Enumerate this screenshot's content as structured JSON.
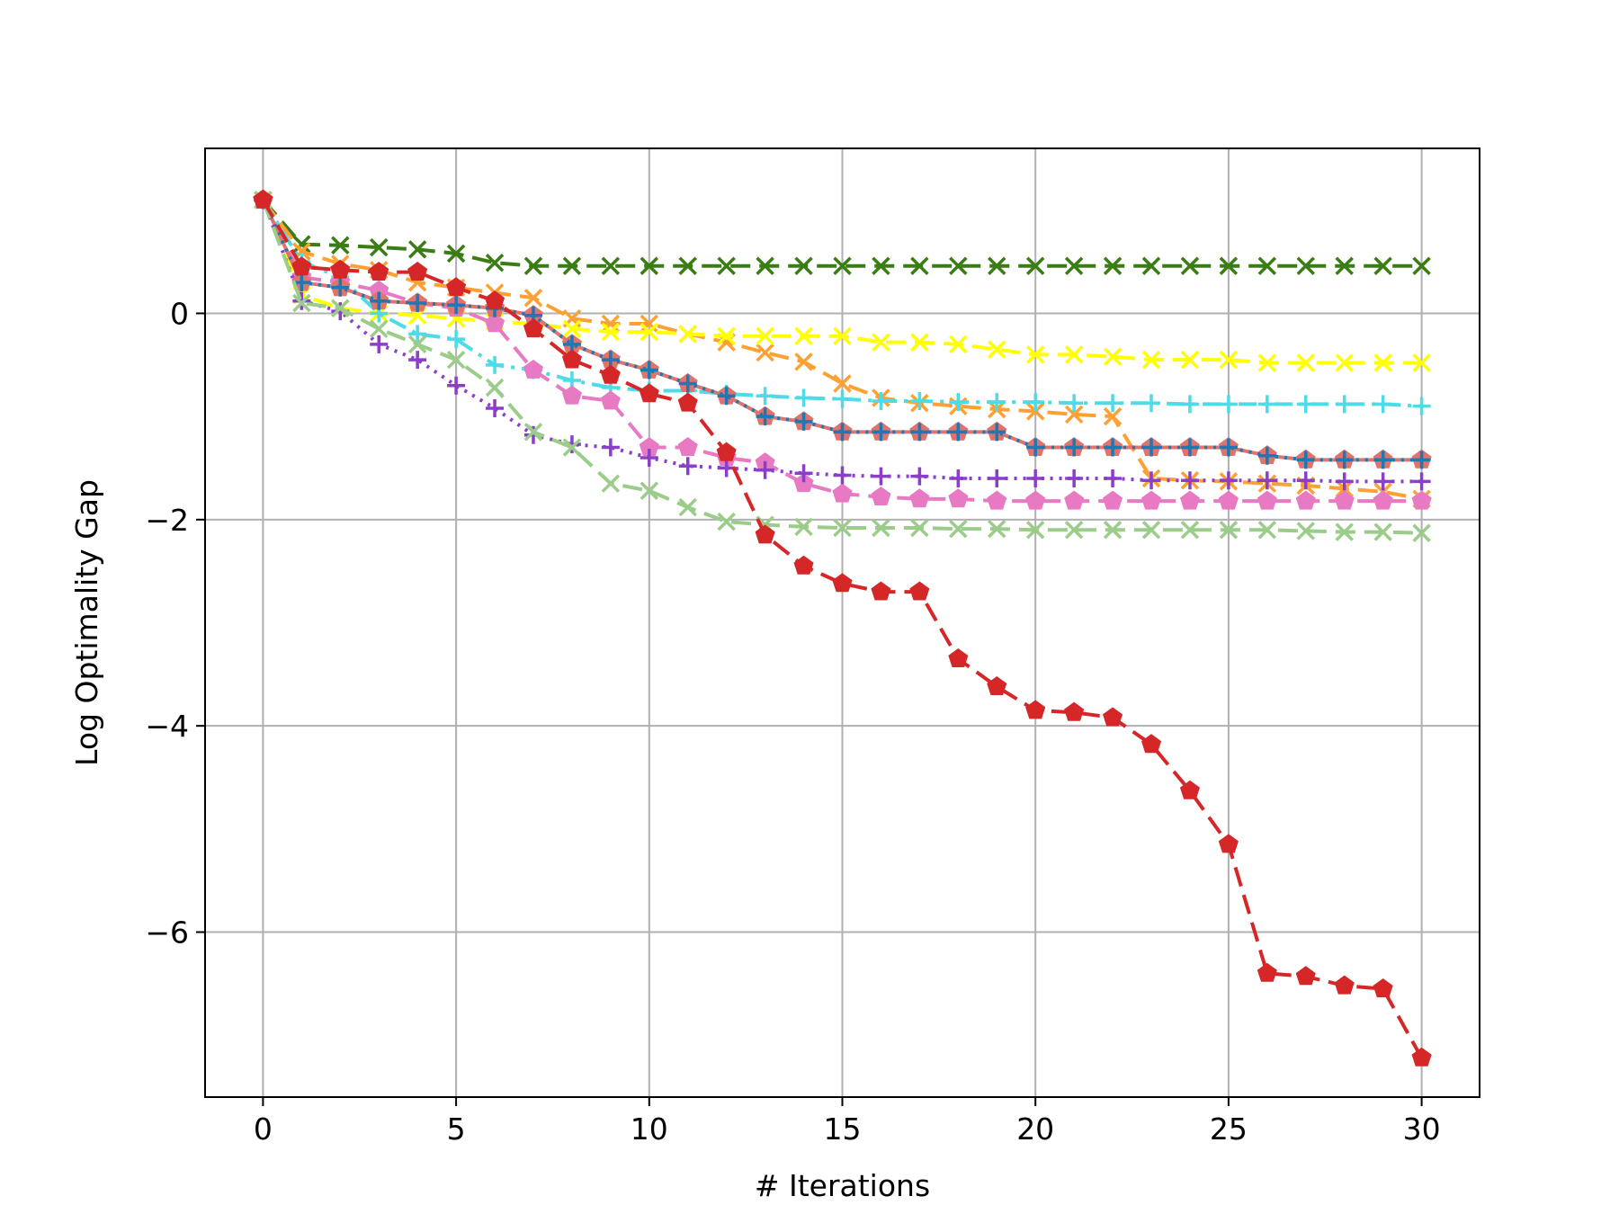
{
  "chart_data": {
    "type": "line",
    "title": "",
    "xlabel": "# Iterations",
    "ylabel": "Log Optimality Gap",
    "xlim": [
      -1.5,
      31.5
    ],
    "ylim": [
      -7.6,
      1.6
    ],
    "xticks": [
      0,
      5,
      10,
      15,
      20,
      25,
      30
    ],
    "xtick_labels": [
      "0",
      "5",
      "10",
      "15",
      "20",
      "25",
      "30"
    ],
    "yticks": [
      0,
      -2,
      -4,
      -6
    ],
    "ytick_labels": [
      "0",
      "−2",
      "−4",
      "−6"
    ],
    "grid": true,
    "legend": "none",
    "x": [
      0,
      1,
      2,
      3,
      4,
      5,
      6,
      7,
      8,
      9,
      10,
      11,
      12,
      13,
      14,
      15,
      16,
      17,
      18,
      19,
      20,
      21,
      22,
      23,
      24,
      25,
      26,
      27,
      28,
      29,
      30
    ],
    "series": [
      {
        "color": "#3a7d14",
        "marker": "x",
        "linestyle": "dashed",
        "values": [
          1.1,
          0.67,
          0.66,
          0.64,
          0.62,
          0.58,
          0.49,
          0.46,
          0.46,
          0.46,
          0.46,
          0.46,
          0.46,
          0.46,
          0.46,
          0.46,
          0.46,
          0.46,
          0.46,
          0.46,
          0.46,
          0.46,
          0.46,
          0.46,
          0.46,
          0.46,
          0.46,
          0.46,
          0.46,
          0.46,
          0.46
        ]
      },
      {
        "color": "#ffa033",
        "marker": "x",
        "linestyle": "dashed",
        "values": [
          1.1,
          0.6,
          0.48,
          0.42,
          0.3,
          0.25,
          0.2,
          0.15,
          -0.05,
          -0.1,
          -0.1,
          -0.2,
          -0.28,
          -0.38,
          -0.47,
          -0.68,
          -0.82,
          -0.87,
          -0.9,
          -0.93,
          -0.95,
          -0.98,
          -1.0,
          -1.6,
          -1.62,
          -1.63,
          -1.65,
          -1.67,
          -1.7,
          -1.73,
          -1.8
        ]
      },
      {
        "color": "#ffff00",
        "marker": "x",
        "linestyle": "dashed",
        "values": [
          1.1,
          0.18,
          0.05,
          0.0,
          -0.02,
          -0.05,
          -0.08,
          -0.1,
          -0.15,
          -0.18,
          -0.18,
          -0.2,
          -0.22,
          -0.22,
          -0.22,
          -0.22,
          -0.28,
          -0.28,
          -0.3,
          -0.35,
          -0.4,
          -0.4,
          -0.42,
          -0.45,
          -0.45,
          -0.45,
          -0.48,
          -0.48,
          -0.48,
          -0.48,
          -0.48
        ]
      },
      {
        "color": "#4ddbe8",
        "marker": "+",
        "linestyle": "dashdot",
        "values": [
          1.1,
          0.5,
          0.35,
          0.0,
          -0.2,
          -0.25,
          -0.5,
          -0.55,
          -0.65,
          -0.72,
          -0.75,
          -0.75,
          -0.78,
          -0.8,
          -0.82,
          -0.83,
          -0.85,
          -0.85,
          -0.86,
          -0.86,
          -0.86,
          -0.87,
          -0.87,
          -0.87,
          -0.88,
          -0.88,
          -0.88,
          -0.88,
          -0.88,
          -0.88,
          -0.9
        ]
      },
      {
        "color": "#e879c3",
        "marker": "pentagon",
        "linestyle": "dashed",
        "values": [
          1.1,
          0.35,
          0.3,
          0.22,
          0.1,
          0.05,
          -0.1,
          -0.55,
          -0.8,
          -0.85,
          -1.3,
          -1.3,
          -1.4,
          -1.45,
          -1.65,
          -1.75,
          -1.78,
          -1.8,
          -1.8,
          -1.82,
          -1.82,
          -1.82,
          -1.82,
          -1.82,
          -1.82,
          -1.82,
          -1.82,
          -1.82,
          -1.82,
          -1.82,
          -1.82
        ]
      },
      {
        "color": "#e0736b",
        "marker": "pentagon",
        "linestyle": "solid",
        "values": [
          1.1,
          0.3,
          0.25,
          0.12,
          0.1,
          0.08,
          0.05,
          -0.02,
          -0.3,
          -0.45,
          -0.55,
          -0.68,
          -0.8,
          -1.0,
          -1.05,
          -1.15,
          -1.15,
          -1.15,
          -1.15,
          -1.15,
          -1.3,
          -1.3,
          -1.3,
          -1.3,
          -1.3,
          -1.3,
          -1.38,
          -1.42,
          -1.42,
          -1.42,
          -1.42
        ]
      },
      {
        "color": "#1f77b4",
        "marker": "+",
        "linestyle": "dotted",
        "values": [
          1.1,
          0.3,
          0.25,
          0.12,
          0.1,
          0.08,
          0.05,
          -0.02,
          -0.3,
          -0.45,
          -0.55,
          -0.68,
          -0.8,
          -1.0,
          -1.05,
          -1.15,
          -1.15,
          -1.15,
          -1.15,
          -1.15,
          -1.3,
          -1.3,
          -1.3,
          -1.3,
          -1.3,
          -1.3,
          -1.38,
          -1.42,
          -1.42,
          -1.42,
          -1.42
        ]
      },
      {
        "color": "#8b3fc8",
        "marker": "+",
        "linestyle": "dotted",
        "values": [
          1.1,
          0.12,
          0.02,
          -0.3,
          -0.45,
          -0.7,
          -0.92,
          -1.18,
          -1.27,
          -1.3,
          -1.4,
          -1.48,
          -1.5,
          -1.52,
          -1.55,
          -1.57,
          -1.58,
          -1.58,
          -1.6,
          -1.6,
          -1.6,
          -1.6,
          -1.6,
          -1.62,
          -1.62,
          -1.62,
          -1.62,
          -1.62,
          -1.63,
          -1.63,
          -1.63
        ]
      },
      {
        "color": "#9ccc8a",
        "marker": "x",
        "linestyle": "dashed",
        "values": [
          1.1,
          0.1,
          0.05,
          -0.15,
          -0.3,
          -0.45,
          -0.72,
          -1.15,
          -1.3,
          -1.65,
          -1.72,
          -1.88,
          -2.02,
          -2.05,
          -2.07,
          -2.08,
          -2.08,
          -2.08,
          -2.09,
          -2.09,
          -2.1,
          -2.1,
          -2.1,
          -2.1,
          -2.1,
          -2.1,
          -2.1,
          -2.11,
          -2.12,
          -2.12,
          -2.13
        ]
      },
      {
        "color": "#d62728",
        "marker": "pentagon",
        "linestyle": "dashed",
        "values": [
          1.1,
          0.45,
          0.42,
          0.4,
          0.4,
          0.25,
          0.12,
          -0.15,
          -0.45,
          -0.6,
          -0.78,
          -0.87,
          -1.35,
          -2.15,
          -2.45,
          -2.62,
          -2.7,
          -2.7,
          -3.35,
          -3.62,
          -3.85,
          -3.87,
          -3.92,
          -4.18,
          -4.63,
          -5.15,
          -6.4,
          -6.43,
          -6.52,
          -6.55,
          -7.22
        ]
      }
    ]
  }
}
